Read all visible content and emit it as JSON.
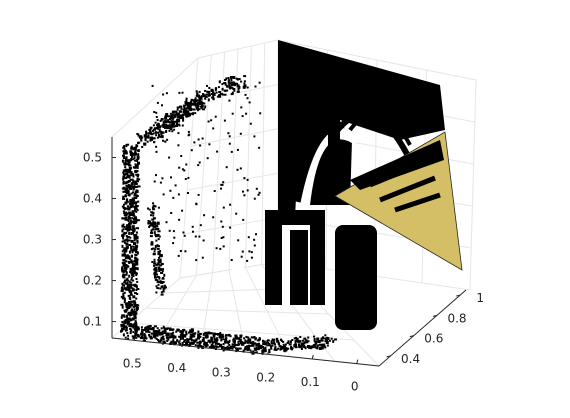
{
  "chart_data": {
    "type": "scatter",
    "subtype": "3d-point-cloud-with-plane",
    "title": "",
    "xlabel": "",
    "ylabel": "",
    "zlabel": "",
    "grid": true,
    "box": "partial",
    "axes": {
      "z": {
        "ticks": [
          0.1,
          0.2,
          0.3,
          0.4,
          0.5
        ],
        "tick_labels": [
          "0.1",
          "0.2",
          "0.3",
          "0.4",
          "0.5"
        ],
        "lim": [
          0.06,
          0.55
        ]
      },
      "x": {
        "ticks": [
          0.5,
          0.4,
          0.3,
          0.2,
          0.1,
          0
        ],
        "tick_labels": [
          "0.5",
          "0.4",
          "0.3",
          "0.2",
          "0.1",
          "0"
        ],
        "lim": [
          0.55,
          -0.05
        ]
      },
      "y": {
        "ticks": [
          0.4,
          0.6,
          0.8,
          1
        ],
        "tick_labels": [
          "0.4",
          "0.6",
          "0.8",
          "1"
        ],
        "lim": [
          0.3,
          1.05
        ]
      }
    },
    "colors": {
      "points": "#000000",
      "plane_fill": "#d4bf66",
      "plane_edge": "#262626",
      "grid": "#e6e6e6",
      "axis": "#262626"
    }
  }
}
